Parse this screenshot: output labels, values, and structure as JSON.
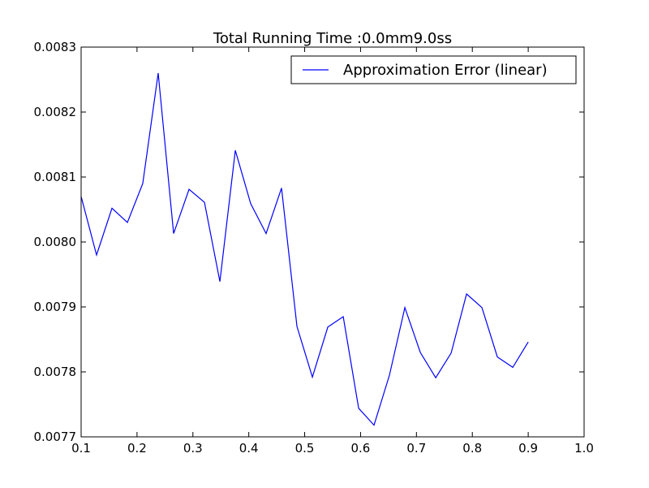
{
  "chart_data": {
    "type": "line",
    "title": "Total Running Time :0.0mm9.0ss",
    "xlabel": "",
    "ylabel": "",
    "xlim": [
      0.1,
      1.0
    ],
    "ylim": [
      0.0077,
      0.0083
    ],
    "x_ticks": [
      "0.1",
      "0.2",
      "0.3",
      "0.4",
      "0.5",
      "0.6",
      "0.7",
      "0.8",
      "0.9",
      "1.0"
    ],
    "y_ticks": [
      "0.0077",
      "0.0078",
      "0.0079",
      "0.0080",
      "0.0081",
      "0.0082",
      "0.0083"
    ],
    "grid": false,
    "legend_position": "top-right",
    "series": [
      {
        "name": "Approximation Error (linear)",
        "color": "#0000ff",
        "x": [
          0.1,
          0.1276,
          0.1552,
          0.1828,
          0.2103,
          0.2379,
          0.2655,
          0.2931,
          0.3207,
          0.3483,
          0.3759,
          0.4034,
          0.431,
          0.4586,
          0.4862,
          0.5138,
          0.5414,
          0.569,
          0.5966,
          0.6241,
          0.6517,
          0.6793,
          0.7069,
          0.7345,
          0.7621,
          0.7897,
          0.8172,
          0.8448,
          0.8724,
          0.9
        ],
        "values": [
          0.00807,
          0.00798,
          0.008052,
          0.00803,
          0.00809,
          0.00826,
          0.008013,
          0.008081,
          0.008061,
          0.007939,
          0.008141,
          0.008059,
          0.008013,
          0.008083,
          0.00787,
          0.007792,
          0.007869,
          0.007885,
          0.007744,
          0.007718,
          0.007795,
          0.007899,
          0.00783,
          0.007791,
          0.007829,
          0.00792,
          0.007899,
          0.007823,
          0.007807,
          0.007846
        ]
      }
    ]
  }
}
